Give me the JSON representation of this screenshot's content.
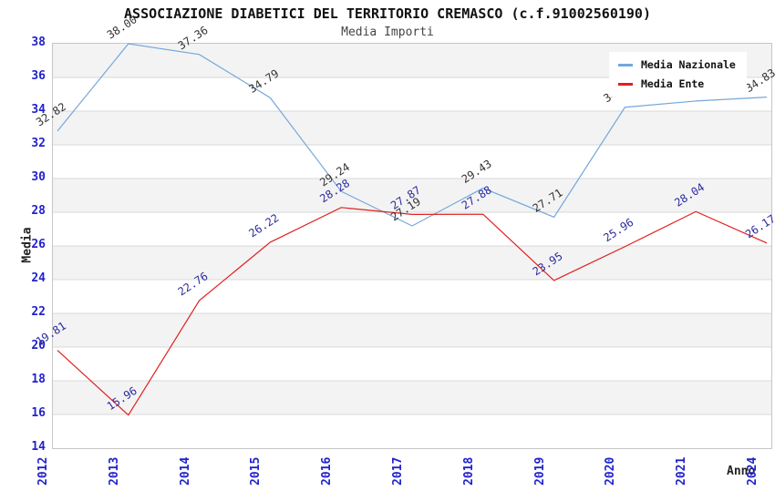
{
  "header": {
    "title": "ASSOCIAZIONE DIABETICI DEL TERRITORIO CREMASCO (c.f.91002560190)",
    "subtitle": "Media Importi"
  },
  "colors": {
    "nazionale_line": "#74a7da",
    "ente_line": "#e02020",
    "nazionale_point_label": "#333333",
    "ente_point_label": "#2b2b9e",
    "axis_tick_label": "#2222cc",
    "grid_line": "#d9d9d9",
    "band_fill": "#f3f3f3",
    "plot_border": "#c6c6c6"
  },
  "legend": {
    "items": [
      {
        "label": "Media Nazionale",
        "color": "#74a7da"
      },
      {
        "label": "Media Ente",
        "color": "#e02020"
      }
    ]
  },
  "chart_data": {
    "type": "line",
    "title": "ASSOCIAZIONE DIABETICI DEL TERRITORIO CREMASCO (c.f.91002560190)",
    "subtitle": "Media Importi",
    "xlabel": "Anno",
    "ylabel": "Media",
    "ylim": [
      14,
      38
    ],
    "ytick_step": 2,
    "grid": "horizontal",
    "legend_position": "top-right",
    "categories": [
      "2012",
      "2013",
      "2014",
      "2015",
      "2016",
      "2017",
      "2018",
      "2019",
      "2020",
      "2021",
      "2024"
    ],
    "series": [
      {
        "name": "Media Nazionale",
        "color": "#74a7da",
        "label_color": "#333333",
        "values": [
          32.82,
          38.0,
          37.36,
          34.79,
          29.24,
          27.19,
          29.43,
          27.71,
          34.23,
          34.6,
          34.83
        ]
      },
      {
        "name": "Media Ente",
        "color": "#e02020",
        "label_color": "#2b2b9e",
        "values": [
          19.81,
          15.96,
          22.76,
          26.22,
          28.28,
          27.87,
          27.88,
          23.95,
          25.96,
          28.04,
          26.17
        ]
      }
    ]
  }
}
